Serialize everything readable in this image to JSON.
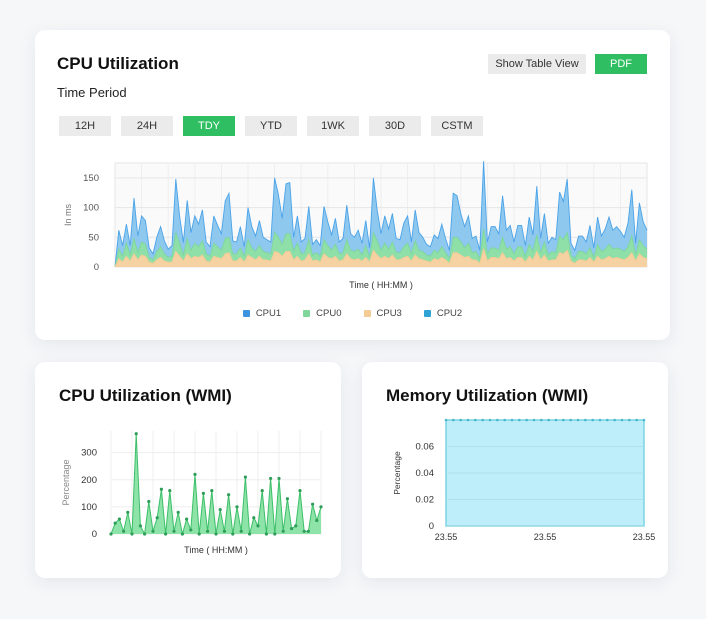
{
  "cpu_card": {
    "title": "CPU Utilization",
    "time_period_label": "Time Period",
    "show_table_label": "Show Table View",
    "pdf_label": "PDF",
    "period_buttons": [
      "12H",
      "24H",
      "TDY",
      "YTD",
      "1WK",
      "30D",
      "CSTM"
    ],
    "active_period": "TDY",
    "accent_color": "#2fbf62"
  },
  "wmi_card": {
    "title": "CPU Utilization (WMI)"
  },
  "mem_card": {
    "title": "Memory Utilization (WMI)"
  },
  "chart_data": [
    {
      "type": "area",
      "ylabel": "In ms",
      "xlabel": "Time ( HH:MM )",
      "yticks": [
        0,
        50,
        100,
        150
      ],
      "ylim": [
        0,
        175
      ],
      "grid": true,
      "legend_position": "bottom",
      "series": [
        {
          "name": "CPU1",
          "color": "#4aa3e8",
          "values": [
            0,
            62,
            36,
            72,
            36,
            116,
            52,
            86,
            78,
            32,
            22,
            50,
            68,
            44,
            30,
            36,
            148,
            86,
            41,
            112,
            58,
            86,
            72,
            96,
            42,
            34,
            86,
            70,
            56,
            111,
            124,
            44,
            42,
            68,
            34,
            100,
            68,
            52,
            78,
            50,
            46,
            42,
            150,
            122,
            82,
            140,
            142,
            50,
            86,
            42,
            48,
            102,
            38,
            46,
            36,
            102,
            76,
            54,
            82,
            42,
            48,
            104,
            56,
            50,
            62,
            40,
            78,
            32,
            150,
            96,
            56,
            86,
            64,
            90,
            48,
            46,
            74,
            86,
            42,
            96,
            58,
            50,
            38,
            34,
            54,
            48,
            72,
            48,
            28,
            124,
            120,
            90,
            68,
            86,
            48,
            52,
            28,
            178,
            42,
            68,
            68,
            56,
            120,
            62,
            70,
            42,
            70,
            70,
            36,
            84,
            54,
            136,
            48,
            90,
            40,
            50,
            46,
            126,
            110,
            148,
            40,
            28,
            52,
            52,
            42,
            70,
            32,
            84,
            52,
            64,
            84,
            62,
            68,
            60,
            50,
            74,
            130,
            40,
            108,
            76,
            62
          ]
        },
        {
          "name": "CPU0",
          "color": "#7ed69b",
          "values": [
            0,
            30,
            18,
            40,
            20,
            48,
            24,
            42,
            38,
            16,
            12,
            26,
            34,
            22,
            16,
            18,
            58,
            40,
            20,
            48,
            28,
            40,
            34,
            44,
            22,
            18,
            40,
            34,
            28,
            48,
            50,
            22,
            22,
            32,
            18,
            46,
            32,
            26,
            36,
            26,
            24,
            22,
            58,
            50,
            38,
            56,
            56,
            26,
            40,
            22,
            24,
            46,
            20,
            24,
            18,
            46,
            36,
            28,
            38,
            22,
            24,
            46,
            28,
            26,
            30,
            20,
            36,
            16,
            58,
            44,
            28,
            40,
            30,
            42,
            24,
            24,
            34,
            40,
            22,
            44,
            28,
            26,
            20,
            18,
            28,
            24,
            34,
            24,
            14,
            50,
            50,
            42,
            32,
            40,
            24,
            26,
            14,
            64,
            22,
            32,
            32,
            28,
            50,
            30,
            34,
            22,
            34,
            34,
            18,
            38,
            26,
            54,
            24,
            42,
            20,
            26,
            24,
            52,
            46,
            58,
            20,
            14,
            26,
            26,
            22,
            32,
            16,
            38,
            26,
            30,
            38,
            30,
            32,
            30,
            26,
            34,
            52,
            20,
            46,
            36,
            30
          ]
        },
        {
          "name": "CPU3",
          "color": "#f5cb95",
          "values": [
            0,
            14,
            8,
            18,
            10,
            22,
            12,
            20,
            18,
            8,
            6,
            12,
            16,
            10,
            8,
            8,
            26,
            18,
            10,
            22,
            14,
            18,
            16,
            20,
            10,
            8,
            18,
            16,
            14,
            22,
            24,
            10,
            10,
            16,
            8,
            20,
            16,
            12,
            18,
            12,
            12,
            10,
            26,
            24,
            18,
            26,
            26,
            12,
            18,
            10,
            12,
            22,
            10,
            12,
            8,
            22,
            16,
            14,
            18,
            10,
            12,
            22,
            14,
            12,
            14,
            10,
            16,
            8,
            28,
            20,
            14,
            18,
            14,
            20,
            12,
            12,
            16,
            18,
            10,
            20,
            14,
            12,
            10,
            8,
            14,
            12,
            16,
            12,
            6,
            24,
            24,
            20,
            16,
            18,
            12,
            12,
            6,
            30,
            10,
            16,
            16,
            14,
            24,
            14,
            16,
            10,
            16,
            16,
            8,
            18,
            12,
            26,
            12,
            20,
            10,
            12,
            12,
            24,
            22,
            28,
            10,
            6,
            12,
            12,
            10,
            16,
            8,
            18,
            12,
            14,
            18,
            14,
            16,
            14,
            12,
            16,
            24,
            10,
            22,
            16,
            14
          ]
        },
        {
          "name": "CPU2",
          "color": "#2fa3d6",
          "values": []
        }
      ]
    },
    {
      "type": "area",
      "ylabel": "Percentage",
      "xlabel": "Time ( HH:MM )",
      "yticks": [
        0,
        100,
        200,
        300
      ],
      "ylim": [
        0,
        380
      ],
      "grid": true,
      "series": [
        {
          "name": "",
          "color": "#5fcf86",
          "values": [
            0,
            40,
            55,
            10,
            80,
            0,
            370,
            30,
            0,
            120,
            10,
            60,
            165,
            0,
            160,
            10,
            80,
            0,
            55,
            15,
            220,
            0,
            150,
            10,
            160,
            0,
            90,
            10,
            145,
            0,
            100,
            10,
            210,
            0,
            60,
            30,
            160,
            0,
            205,
            0,
            205,
            10,
            130,
            20,
            30,
            160,
            10,
            10,
            110,
            50,
            100
          ]
        }
      ]
    },
    {
      "type": "area",
      "ylabel": "Percentage",
      "xlabel": "",
      "yticks": [
        "0",
        "0.02",
        "0.04",
        "0.06"
      ],
      "xticks": [
        "23.55",
        "23.55",
        "23.55"
      ],
      "ylim": [
        0,
        0.08
      ],
      "grid": true,
      "series": [
        {
          "name": "",
          "color": "#bdeefa",
          "values": [
            0.08,
            0.08,
            0.08,
            0.08,
            0.08,
            0.08,
            0.08,
            0.08,
            0.08,
            0.08,
            0.08,
            0.08,
            0.08,
            0.08,
            0.08,
            0.08,
            0.08,
            0.08,
            0.08,
            0.08,
            0.08,
            0.08,
            0.08,
            0.08,
            0.08,
            0.08,
            0.08,
            0.08
          ]
        }
      ]
    }
  ]
}
